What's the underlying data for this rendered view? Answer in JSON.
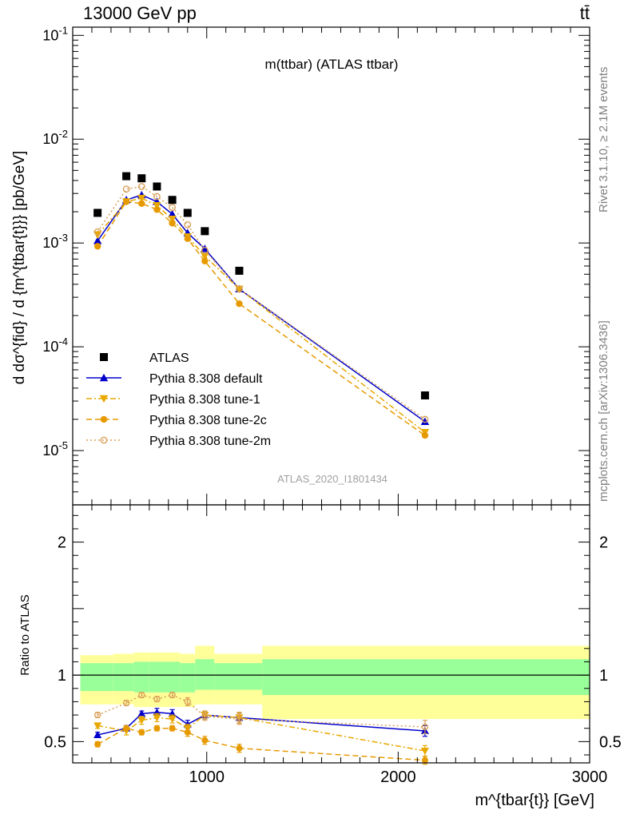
{
  "header": {
    "left_title": "13000 GeV pp",
    "right_title": "tt̄"
  },
  "side_labels": {
    "top": "Rivet 3.1.10, ≥ 2.1M events",
    "bottom": "mcplots.cern.ch [arXiv:1306.3436]"
  },
  "analysis_id": "ATLAS_2020_I1801434",
  "chart_data": [
    {
      "type": "scatter",
      "panel": "main",
      "title": "m(ttbar) (ATLAS ttbar)",
      "ylabel": "d dσ^{fid} / d {m^{tbar{t}}} [pb/GeV]",
      "yscale": "log",
      "ylim": [
        3e-06,
        0.12
      ],
      "xlim": [
        300,
        3000
      ],
      "y_ticks": [
        0.1,
        0.01,
        0.001,
        0.0001,
        1e-05
      ],
      "y_tick_labels": [
        "10^-1",
        "10^-2",
        "10^-3",
        "10^-4",
        "10^-5"
      ],
      "legend_position": "lower-left",
      "x": [
        430,
        580,
        660,
        740,
        820,
        900,
        990,
        1170,
        2140
      ],
      "series": [
        {
          "name": "ATLAS",
          "color": "#000000",
          "marker": "square",
          "line": "none",
          "values": [
            0.00195,
            0.0044,
            0.0042,
            0.0035,
            0.0026,
            0.00195,
            0.0013,
            0.00054,
            3.4e-05
          ]
        },
        {
          "name": "Pythia 8.308 default",
          "color": "#0000cc",
          "marker": "triangle-up",
          "line": "solid",
          "values": [
            0.00105,
            0.0026,
            0.0029,
            0.0025,
            0.0019,
            0.00125,
            0.00088,
            0.00036,
            1.9e-05
          ]
        },
        {
          "name": "Pythia 8.308 tune-1",
          "color": "#e8a800",
          "marker": "triangle-down",
          "line": "dashdot",
          "values": [
            0.0012,
            0.0025,
            0.0027,
            0.0023,
            0.0017,
            0.00115,
            0.00075,
            0.00036,
            1.5e-05
          ]
        },
        {
          "name": "Pythia 8.308 tune-2c",
          "color": "#e69a00",
          "marker": "circle",
          "line": "dashed",
          "values": [
            0.00093,
            0.0025,
            0.0024,
            0.0021,
            0.00155,
            0.0011,
            0.00067,
            0.00026,
            1.4e-05
          ]
        },
        {
          "name": "Pythia 8.308 tune-2m",
          "color": "#d9a05a",
          "marker": "open-circle",
          "line": "dotted",
          "values": [
            0.00128,
            0.0033,
            0.0035,
            0.0028,
            0.0022,
            0.0015,
            0.00085,
            0.00036,
            2e-05
          ]
        }
      ]
    },
    {
      "type": "line",
      "panel": "ratio",
      "ylabel": "Ratio to ATLAS",
      "xlabel": "m^{tbar{t}} [GeV]",
      "xlim": [
        300,
        3000
      ],
      "ylim": [
        0.34,
        2.28
      ],
      "x_ticks": [
        1000,
        2000,
        3000
      ],
      "y_ticks": [
        0.5,
        1,
        2
      ],
      "reference_line": 1,
      "bands": {
        "edges": [
          300,
          510,
          620,
          700,
          780,
          860,
          940,
          1040,
          1290,
          3000
        ],
        "yellow": [
          [
            0.78,
            1.15
          ],
          [
            0.78,
            1.16
          ],
          [
            0.76,
            1.17
          ],
          [
            0.76,
            1.17
          ],
          [
            0.76,
            1.17
          ],
          [
            0.76,
            1.16
          ],
          [
            0.78,
            1.22
          ],
          [
            0.78,
            1.16
          ],
          [
            0.67,
            1.22
          ]
        ],
        "green": [
          [
            0.88,
            1.09
          ],
          [
            0.88,
            1.09
          ],
          [
            0.87,
            1.1
          ],
          [
            0.87,
            1.1
          ],
          [
            0.87,
            1.1
          ],
          [
            0.87,
            1.09
          ],
          [
            0.89,
            1.12
          ],
          [
            0.89,
            1.09
          ],
          [
            0.85,
            1.12
          ]
        ],
        "yellow_color": "#ffff99",
        "green_color": "#99ff99"
      },
      "x": [
        430,
        580,
        660,
        740,
        820,
        900,
        990,
        1170,
        2140
      ],
      "series": [
        {
          "name": "Pythia 8.308 default",
          "color": "#0000cc",
          "marker": "triangle-up",
          "line": "solid",
          "values": [
            0.55,
            0.6,
            0.71,
            0.72,
            0.71,
            0.63,
            0.7,
            0.68,
            0.58
          ],
          "errors": [
            0.02,
            0.02,
            0.02,
            0.03,
            0.03,
            0.03,
            0.03,
            0.04,
            0.04
          ]
        },
        {
          "name": "Pythia 8.308 tune-1",
          "color": "#e8a800",
          "marker": "triangle-down",
          "line": "dashdot",
          "values": [
            0.62,
            0.58,
            0.66,
            0.68,
            0.67,
            0.6,
            0.7,
            0.68,
            0.43
          ],
          "errors": [
            0.02,
            0.03,
            0.03,
            0.03,
            0.03,
            0.03,
            0.03,
            0.04,
            0.04
          ]
        },
        {
          "name": "Pythia 8.308 tune-2c",
          "color": "#e69a00",
          "marker": "circle",
          "line": "dashed",
          "values": [
            0.48,
            0.6,
            0.57,
            0.6,
            0.6,
            0.57,
            0.51,
            0.45,
            0.36
          ],
          "errors": [
            0.02,
            0.02,
            0.02,
            0.02,
            0.02,
            0.03,
            0.03,
            0.03,
            0.03
          ]
        },
        {
          "name": "Pythia 8.308 tune-2m",
          "color": "#d9a05a",
          "marker": "open-circle",
          "line": "dotted",
          "values": [
            0.7,
            0.79,
            0.85,
            0.82,
            0.85,
            0.8,
            0.69,
            0.67,
            0.61
          ],
          "errors": [
            0.02,
            0.02,
            0.02,
            0.02,
            0.02,
            0.03,
            0.03,
            0.04,
            0.05
          ]
        }
      ]
    }
  ]
}
